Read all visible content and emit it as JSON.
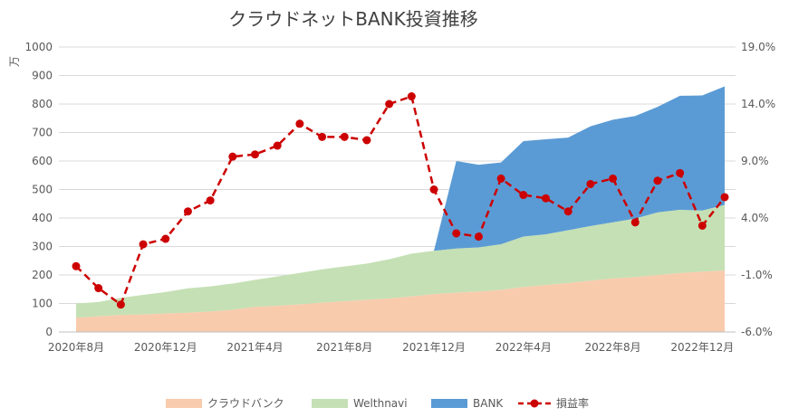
{
  "chart_data": {
    "type": "area",
    "title": "クラウドネットBANK投資推移",
    "y_left_unit": "万",
    "y_left_range": [
      0,
      1000
    ],
    "y_left_ticks": [
      "0",
      "100",
      "200",
      "300",
      "400",
      "500",
      "600",
      "700",
      "800",
      "900",
      "1000"
    ],
    "y_right_range": [
      -6,
      20
    ],
    "y_right_ticks": [
      "-6.0%",
      "-1.0%",
      "4.0%",
      "9.0%",
      "14.0%",
      "19.0%"
    ],
    "x_tick_labels": [
      "2020年8月",
      "2020年12月",
      "2021年4月",
      "2021年8月",
      "2021年12月",
      "2022年4月",
      "2022年8月",
      "2022年12月"
    ],
    "x_tick_indices": [
      0,
      4,
      8,
      12,
      16,
      20,
      24,
      28
    ],
    "months": [
      "2020-08",
      "2020-09",
      "2020-10",
      "2020-11",
      "2020-12",
      "2021-01",
      "2021-02",
      "2021-03",
      "2021-04",
      "2021-05",
      "2021-06",
      "2021-07",
      "2021-08",
      "2021-09",
      "2021-10",
      "2021-11",
      "2021-12",
      "2022-01",
      "2022-02",
      "2022-03",
      "2022-04",
      "2022-05",
      "2022-06",
      "2022-07",
      "2022-08",
      "2022-09",
      "2022-10",
      "2022-11",
      "2022-12",
      "2023-01"
    ],
    "grid": true,
    "legend_position": "bottom",
    "series": [
      {
        "name": "クラウドバンク",
        "kind": "stacked-area",
        "axis": "left",
        "color": "#f8cbad",
        "values": [
          50,
          55,
          60,
          62,
          65,
          68,
          72,
          78,
          88,
          92,
          97,
          103,
          108,
          113,
          118,
          125,
          133,
          138,
          142,
          148,
          158,
          165,
          172,
          180,
          188,
          193,
          200,
          207,
          212,
          216
        ]
      },
      {
        "name": "Welthnavi",
        "kind": "stacked-area",
        "axis": "left",
        "color": "#c5e0b4",
        "values": [
          50,
          50,
          60,
          68,
          75,
          85,
          88,
          92,
          95,
          103,
          110,
          117,
          122,
          127,
          137,
          150,
          152,
          155,
          155,
          160,
          177,
          178,
          185,
          192,
          197,
          205,
          220,
          222,
          214,
          230
        ]
      },
      {
        "name": "BANK",
        "kind": "stacked-area",
        "axis": "left",
        "color": "#5b9bd5",
        "values": [
          0,
          0,
          0,
          0,
          0,
          0,
          0,
          0,
          0,
          0,
          0,
          0,
          0,
          0,
          0,
          0,
          0,
          307,
          290,
          287,
          335,
          333,
          325,
          350,
          360,
          360,
          370,
          400,
          404,
          416
        ]
      },
      {
        "name": "損益率",
        "kind": "line",
        "axis": "right",
        "color": "#cc0000",
        "values": [
          0.0,
          -2.0,
          -3.5,
          2.0,
          2.5,
          5.0,
          6.0,
          10.0,
          10.2,
          11.0,
          13.0,
          11.8,
          11.8,
          11.5,
          14.8,
          15.5,
          7.0,
          3.0,
          2.7,
          8.0,
          6.5,
          6.2,
          5.0,
          7.5,
          8.0,
          4.0,
          7.8,
          8.5,
          3.7,
          6.3
        ]
      }
    ]
  }
}
